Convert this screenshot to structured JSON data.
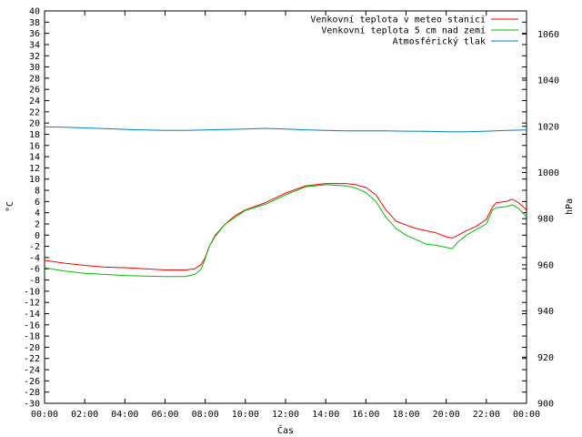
{
  "chart_data": {
    "type": "line",
    "xlabel": "Čas",
    "ylabel": "°C",
    "y2label": "hPa",
    "x_ticks": [
      "00:00",
      "02:00",
      "04:00",
      "06:00",
      "08:00",
      "10:00",
      "12:00",
      "14:00",
      "16:00",
      "18:00",
      "20:00",
      "22:00",
      "00:00"
    ],
    "xlim_hours": [
      0,
      24
    ],
    "ylim": [
      -30,
      40
    ],
    "y_tick_step": 2,
    "y2lim": [
      900,
      1070
    ],
    "y2_ticks": [
      900,
      920,
      940,
      960,
      980,
      1000,
      1020,
      1040,
      1060
    ],
    "grid": false,
    "legend_position": "top-right",
    "series": [
      {
        "name": "Venkovní teplota v meteo stanici",
        "color": "#ff0000",
        "axis": "left",
        "x": [
          0,
          1,
          2,
          3,
          4,
          5,
          6,
          7,
          7.5,
          7.8,
          8,
          8.2,
          8.5,
          9,
          9.5,
          10,
          11,
          12,
          13,
          14,
          15,
          15.5,
          16,
          16.5,
          17,
          17.5,
          18,
          18.5,
          19,
          19.5,
          20,
          20.3,
          20.6,
          21,
          21.5,
          22,
          22.3,
          22.5,
          23,
          23.3,
          23.6,
          24
        ],
        "values": [
          -4.5,
          -5,
          -5.4,
          -5.7,
          -5.8,
          -6,
          -6.2,
          -6.2,
          -6,
          -5.2,
          -4,
          -2,
          0,
          2,
          3.5,
          4.5,
          5.8,
          7.5,
          8.8,
          9.2,
          9.2,
          9,
          8.5,
          7.2,
          4.5,
          2.5,
          1.8,
          1.2,
          0.8,
          0.4,
          -0.3,
          -0.5,
          0,
          0.8,
          1.6,
          2.8,
          5,
          5.8,
          6,
          6.4,
          5.8,
          4.5
        ]
      },
      {
        "name": "Venkovní teplota 5 cm nad zemí",
        "color": "#00c000",
        "axis": "left",
        "x": [
          0,
          1,
          2,
          3,
          4,
          5,
          6,
          7,
          7.5,
          7.8,
          8,
          8.2,
          8.5,
          9,
          9.5,
          10,
          11,
          12,
          13,
          14,
          15,
          15.5,
          16,
          16.5,
          17,
          17.5,
          18,
          18.5,
          19,
          19.5,
          20,
          20.3,
          20.6,
          21,
          21.5,
          22,
          22.3,
          22.5,
          23,
          23.3,
          23.6,
          24
        ],
        "values": [
          -5.8,
          -6.4,
          -6.8,
          -7,
          -7.2,
          -7.3,
          -7.4,
          -7.4,
          -7,
          -6,
          -4.2,
          -2,
          -0.2,
          2,
          3.2,
          4.4,
          5.5,
          7.2,
          8.6,
          9,
          8.8,
          8.4,
          7.6,
          6,
          3.2,
          1.2,
          0,
          -0.8,
          -1.6,
          -1.8,
          -2.2,
          -2.4,
          -1.2,
          0,
          1,
          2,
          4.5,
          4.9,
          5.1,
          5.4,
          4.8,
          3.2
        ]
      },
      {
        "name": "Atmosférický tlak",
        "color": "#0080c0",
        "axis": "right",
        "x": [
          0,
          1,
          2,
          3,
          4,
          5,
          6,
          7,
          8,
          9,
          10,
          11,
          12,
          13,
          14,
          15,
          16,
          17,
          18,
          19,
          20,
          21,
          22,
          23,
          24
        ],
        "values": [
          1019.8,
          1019.6,
          1019.3,
          1019,
          1018.7,
          1018.4,
          1018.2,
          1018.2,
          1018.4,
          1018.6,
          1018.8,
          1019.1,
          1018.8,
          1018.5,
          1018.2,
          1018,
          1018,
          1018,
          1017.9,
          1017.8,
          1017.6,
          1017.6,
          1017.9,
          1018.2,
          1018.4
        ]
      }
    ]
  }
}
